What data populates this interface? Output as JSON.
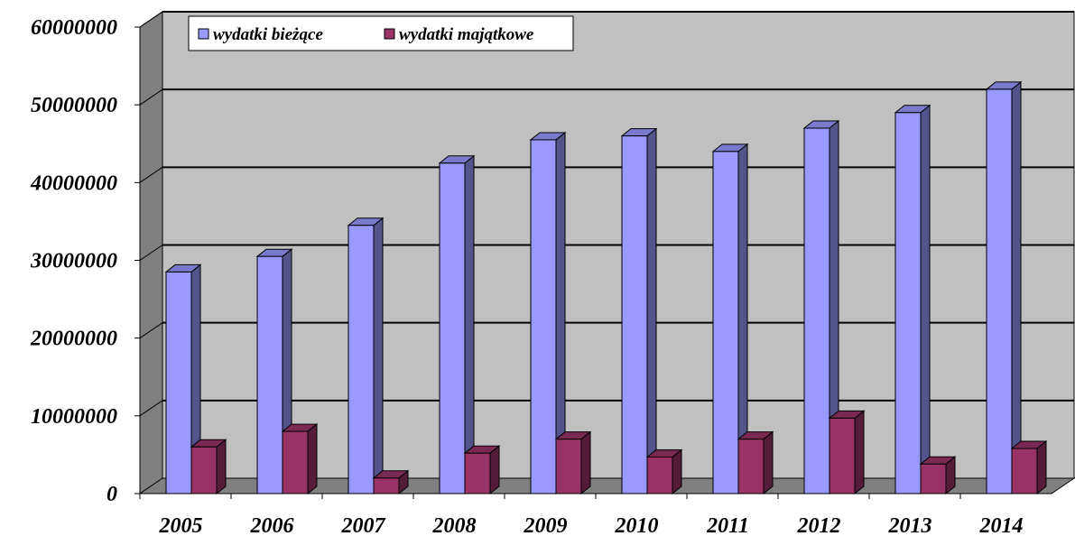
{
  "chart_data": {
    "type": "bar",
    "title": "",
    "xlabel": "",
    "ylabel": "",
    "categories": [
      "2005",
      "2006",
      "2007",
      "2008",
      "2009",
      "2010",
      "2011",
      "2012",
      "2013",
      "2014"
    ],
    "series": [
      {
        "name": "wydatki bieżące",
        "color": "#9999FF",
        "values": [
          28500000,
          30500000,
          34500000,
          42500000,
          45500000,
          46000000,
          44000000,
          47000000,
          49000000,
          52000000
        ]
      },
      {
        "name": "wydatki majątkowe",
        "color": "#993366",
        "values": [
          6000000,
          8000000,
          2000000,
          5200000,
          7000000,
          4700000,
          7000000,
          9700000,
          3800000,
          5800000
        ]
      }
    ],
    "ylim": [
      0,
      60000000
    ],
    "yticks": [
      "0",
      "10000000",
      "20000000",
      "30000000",
      "40000000",
      "50000000",
      "60000000"
    ],
    "grid": true,
    "legend_position": "top-left",
    "style": "3d-column"
  }
}
